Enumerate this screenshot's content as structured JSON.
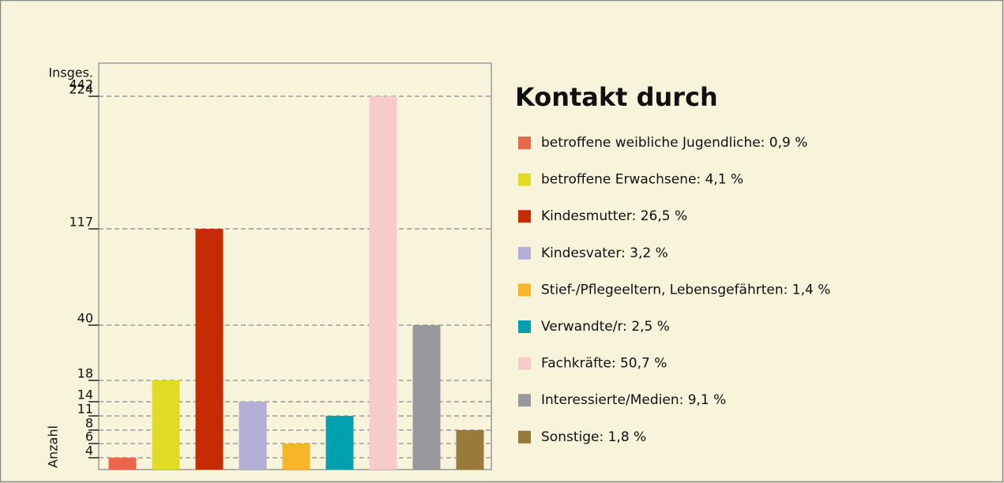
{
  "chart_data": {
    "type": "bar",
    "title": "Kontakt durch",
    "y_label": "Anzahl",
    "total_label": "Insges.",
    "total": 442,
    "categories": [
      "betroffene weibliche Jugendliche: 0,9 %",
      "betroffene Erwachsene: 4,1 %",
      "Kindesmutter: 26,5 %",
      "Kindesvater: 3,2 %",
      "Stief-/Pflegeeltern, Lebensgefährten: 1,4 %",
      "Verwandte/r: 2,5 %",
      "Fachkräfte: 50,7 %",
      "Interessierte/Medien: 9,1 %",
      "Sonstige: 1,8 %"
    ],
    "values": [
      4,
      18,
      117,
      14,
      6,
      11,
      224,
      40,
      8
    ],
    "colors": [
      "#e8674a",
      "#dfdc24",
      "#c52b05",
      "#b2aed6",
      "#f7b52a",
      "#00a0b0",
      "#f6cccb",
      "#98979c",
      "#9a7a3c"
    ],
    "ylim": [
      0,
      224
    ],
    "yticks": [
      4,
      6,
      8,
      11,
      14,
      18,
      40,
      117,
      224
    ],
    "grid": true
  }
}
